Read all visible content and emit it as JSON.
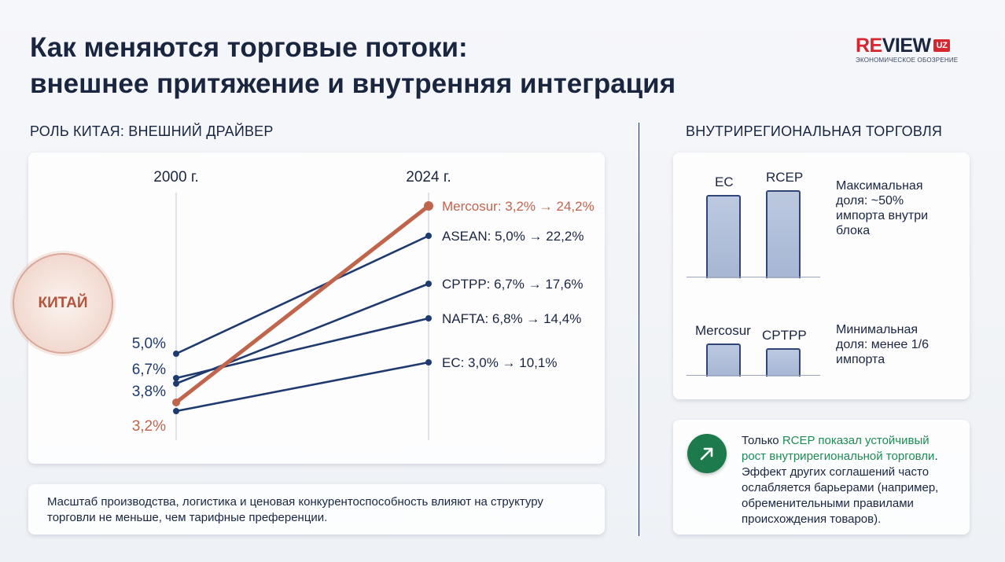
{
  "header": {
    "title_line1": "Как меняются торговые потоки:",
    "title_line2": "внешнее притяжение и внутренняя интеграция",
    "logo_re": "RE",
    "logo_view": "VIEW",
    "logo_uz": "UZ",
    "logo_sub": "ЭКОНОМИЧЕСКОЕ ОБОЗРЕНИЕ"
  },
  "left": {
    "section_label": "РОЛЬ КИТАЯ: ВНЕШНИЙ ДРАЙВЕР",
    "china_label": "КИТАЙ",
    "footnote_line1": "Масштаб производства, логистика и ценовая конкурентоспособность влияют на структуру",
    "footnote_line2": "торговли не меньше, чем тарифные преференции."
  },
  "right": {
    "section_label": "ВНУТРИРЕГИОНАЛЬНАЯ ТОРГОВЛЯ",
    "top_bars": [
      {
        "label": "ЕС",
        "level": "high"
      },
      {
        "label": "RCEP",
        "level": "high"
      }
    ],
    "top_caption": [
      "Максимальная",
      "доля: ~50%",
      "импорта внутри",
      "блока"
    ],
    "bottom_bars": [
      {
        "label": "Mercosur",
        "level": "low"
      },
      {
        "label": "CPTPP",
        "level": "low"
      }
    ],
    "bottom_caption": [
      "Минимальная",
      "доля: менее 1/6",
      "импорта"
    ],
    "note_pre": "Только ",
    "note_highlight1": "RCEP показал устойчивый",
    "note_highlight2": "рост внутрирегиональной торговли",
    "note_end": ".",
    "note_rest": [
      "Эффект других соглашений часто",
      "ослабляется барьерами (например,",
      "обременительными правилами",
      "происхождения товаров)."
    ]
  },
  "chart_data": {
    "type": "line",
    "title": "Роль Китая: внешний драйвер",
    "x": [
      "2000 г.",
      "2024 г."
    ],
    "unit": "%",
    "series": [
      {
        "name": "Mercosur",
        "start": 3.2,
        "end": 24.2,
        "label": "Mercosur: 3,2% → 24,2%",
        "color": "#c0644b",
        "highlight": true
      },
      {
        "name": "ASEAN",
        "start": 5.0,
        "end": 22.2,
        "label": "ASEAN: 5,0% → 22,2%",
        "color": "#1f3a6e"
      },
      {
        "name": "CPTPP",
        "start": 6.7,
        "end": 17.6,
        "label": "CPTPP: 6,7% → 17,6%",
        "color": "#1f3a6e"
      },
      {
        "name": "NAFTA",
        "start": 6.8,
        "end": 14.4,
        "label": "NAFTA: 6,8% → 14,4%",
        "color": "#1f3a6e"
      },
      {
        "name": "ЕС",
        "start": 3.0,
        "end": 10.1,
        "label": "ЕС: 3,0% → 10,1%",
        "color": "#1f3a6e"
      }
    ],
    "start_labels": [
      {
        "text": "5,0%",
        "color": "#1f3a6e"
      },
      {
        "text": "6,7%",
        "color": "#1f3a6e"
      },
      {
        "text": "3,8%",
        "color": "#1f3a6e"
      },
      {
        "text": "3,2%",
        "color": "#c0644b"
      }
    ]
  }
}
